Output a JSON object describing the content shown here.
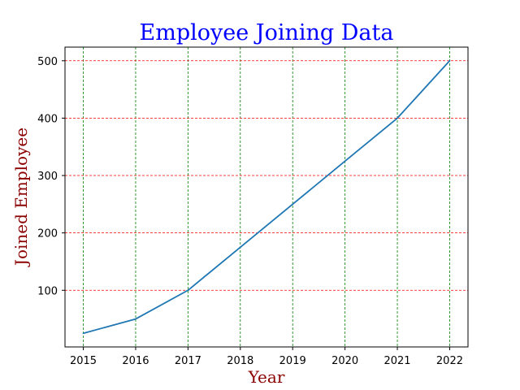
{
  "chart_data": {
    "type": "line",
    "title": "Employee Joining Data",
    "xlabel": "Year",
    "ylabel": "Joined Employee",
    "x": [
      2015,
      2016,
      2017,
      2018,
      2019,
      2020,
      2021,
      2022
    ],
    "series": [
      {
        "values": [
          25,
          50,
          100,
          175,
          250,
          325,
          400,
          500
        ]
      }
    ],
    "xlim": [
      2014.65,
      2022.35
    ],
    "ylim": [
      1.25,
      523.75
    ],
    "xticks": [
      "2015",
      "2016",
      "2017",
      "2018",
      "2019",
      "2020",
      "2021",
      "2022"
    ],
    "yticks": [
      "100",
      "200",
      "300",
      "400",
      "500"
    ],
    "grid": {
      "x": true,
      "y": true,
      "x_style": "dashed",
      "y_style": "dashed"
    },
    "colors": {
      "title": "#0000ff",
      "axis_label": "#8b0000",
      "line": "#1f77b4",
      "x_grid": "#008000",
      "y_grid": "#ff0000"
    }
  }
}
